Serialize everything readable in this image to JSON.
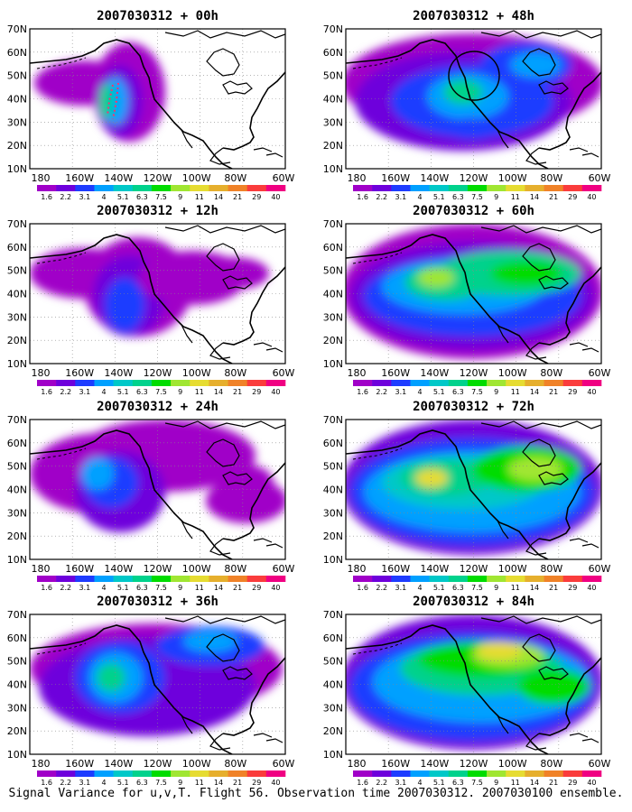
{
  "caption": "Signal Variance for u,v,T. Flight 56. Observation time 2007030312. 2007030100 ensemble.",
  "lon_labels": [
    "180",
    "160W",
    "140W",
    "120W",
    "100W",
    "80W",
    "60W"
  ],
  "lat_labels": [
    "10N",
    "20N",
    "30N",
    "40N",
    "50N",
    "60N",
    "70N"
  ],
  "colorbar": {
    "levels": [
      "1.6",
      "2.2",
      "3.1",
      "4",
      "5.1",
      "6.3",
      "7.5",
      "9",
      "11",
      "14",
      "21",
      "29",
      "40"
    ],
    "colors": [
      "#a000c8",
      "#6e00dc",
      "#1e3cff",
      "#00a0ff",
      "#00c8c8",
      "#00d28c",
      "#00dc00",
      "#a0e632",
      "#e6dc32",
      "#e6af2d",
      "#f08228",
      "#fa3c3c",
      "#f00082"
    ]
  },
  "panels": [
    {
      "title": "2007030312 + 00h",
      "column": 0,
      "row": 0
    },
    {
      "title": "2007030312 + 12h",
      "column": 0,
      "row": 1
    },
    {
      "title": "2007030312 + 24h",
      "column": 0,
      "row": 2
    },
    {
      "title": "2007030312 + 36h",
      "column": 0,
      "row": 3
    },
    {
      "title": "2007030312 + 48h",
      "column": 1,
      "row": 0
    },
    {
      "title": "2007030312 + 60h",
      "column": 1,
      "row": 1
    },
    {
      "title": "2007030312 + 72h",
      "column": 1,
      "row": 2
    },
    {
      "title": "2007030312 + 84h",
      "column": 1,
      "row": 3
    }
  ]
}
